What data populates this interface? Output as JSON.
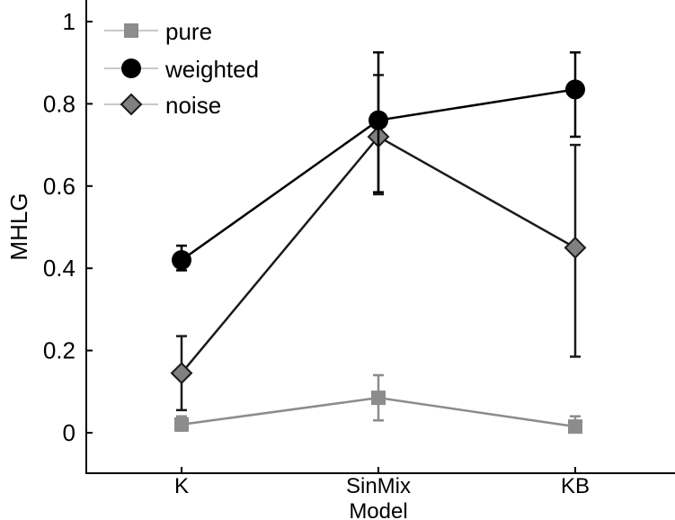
{
  "chart_data": {
    "type": "line",
    "title": "",
    "xlabel": "Model",
    "ylabel": "MHLG",
    "categories": [
      "K",
      "SinMix",
      "KB"
    ],
    "ylim": [
      0,
      1
    ],
    "yticks": [
      "0",
      "0.2",
      "0.4",
      "0.6",
      "0.8",
      "1"
    ],
    "ytick_values": [
      0,
      0.2,
      0.4,
      0.6,
      0.8,
      1
    ],
    "legend_position": "top-left",
    "series": [
      {
        "name": "pure",
        "marker": "square",
        "color": "#8c8c8c",
        "values": [
          0.02,
          0.085,
          0.015
        ],
        "err_low": [
          0.005,
          0.03,
          0.005
        ],
        "err_high": [
          0.04,
          0.14,
          0.04
        ]
      },
      {
        "name": "weighted",
        "marker": "circle",
        "color": "#000000",
        "values": [
          0.42,
          0.76,
          0.835
        ],
        "err_low": [
          0.395,
          0.585,
          0.72
        ],
        "err_high": [
          0.455,
          0.925,
          0.925
        ]
      },
      {
        "name": "noise",
        "marker": "diamond",
        "color": "#1a1a1a",
        "fill": "#808080",
        "values": [
          0.145,
          0.72,
          0.45
        ],
        "err_low": [
          0.055,
          0.58,
          0.185
        ],
        "err_high": [
          0.235,
          0.87,
          0.7
        ]
      }
    ]
  }
}
